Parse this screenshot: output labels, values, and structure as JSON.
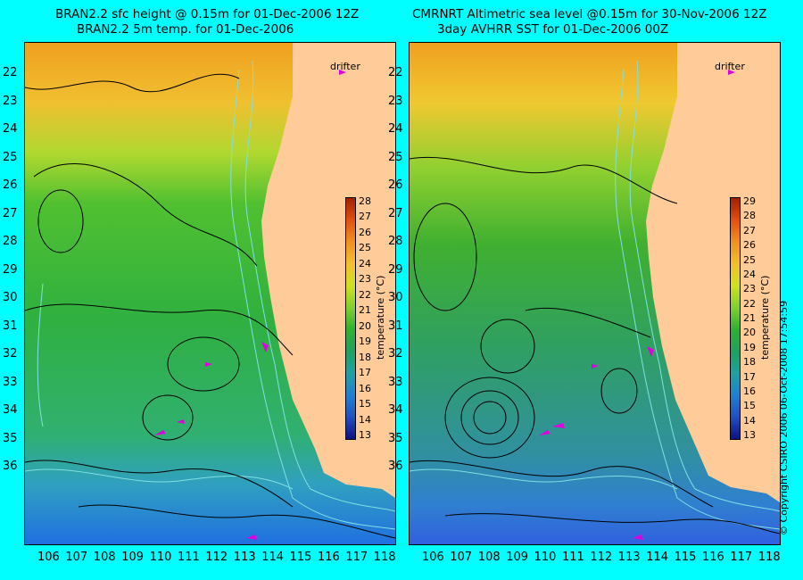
{
  "colors": {
    "background": "#00ffff",
    "land": "#ffcc99",
    "drifter": "#e000e0",
    "contour": "#000000",
    "bathymetry": "#7fe0e0"
  },
  "left": {
    "title_line1": "BRAN2.2 sfc height @ 0.15m for 01-Dec-2006 12Z",
    "title_line2": "BRAN2.2 5m temp. for 01-Dec-2006",
    "drifter_label": "drifter",
    "colorbar": {
      "title": "temperature (°C)",
      "ticks": [
        "28",
        "27",
        "26",
        "25",
        "24",
        "23",
        "22",
        "21",
        "20",
        "19",
        "18",
        "17",
        "16",
        "15",
        "14",
        "13"
      ]
    },
    "lat_ticks": [
      "22",
      "23",
      "24",
      "25",
      "26",
      "27",
      "28",
      "29",
      "30",
      "31",
      "32",
      "33",
      "34",
      "35",
      "36"
    ],
    "lon_ticks": [
      "106",
      "107",
      "108",
      "109",
      "110",
      "111",
      "112",
      "113",
      "114",
      "115",
      "116",
      "117",
      "118"
    ]
  },
  "right": {
    "title_line1": "CMRNRT Altimetric sea level  @0.15m  for 30-Nov-2006 12Z",
    "title_line2": "3day AVHRR SST for 01-Dec-2006 00Z",
    "drifter_label": "drifter",
    "colorbar": {
      "title": "temperature (°C)",
      "ticks": [
        "29",
        "28",
        "27",
        "26",
        "25",
        "24",
        "23",
        "22",
        "21",
        "20",
        "19",
        "18",
        "17",
        "16",
        "15",
        "14",
        "13"
      ]
    },
    "lat_ticks": [
      "22",
      "23",
      "24",
      "25",
      "26",
      "27",
      "28",
      "29",
      "30",
      "31",
      "32",
      "33",
      "34",
      "35",
      "36"
    ],
    "lon_ticks": [
      "106",
      "107",
      "108",
      "109",
      "110",
      "111",
      "112",
      "113",
      "114",
      "115",
      "116",
      "117",
      "118"
    ]
  },
  "copyright": "© Copyright CSIRO 2006    06-Oct-2008 17:54:59"
}
